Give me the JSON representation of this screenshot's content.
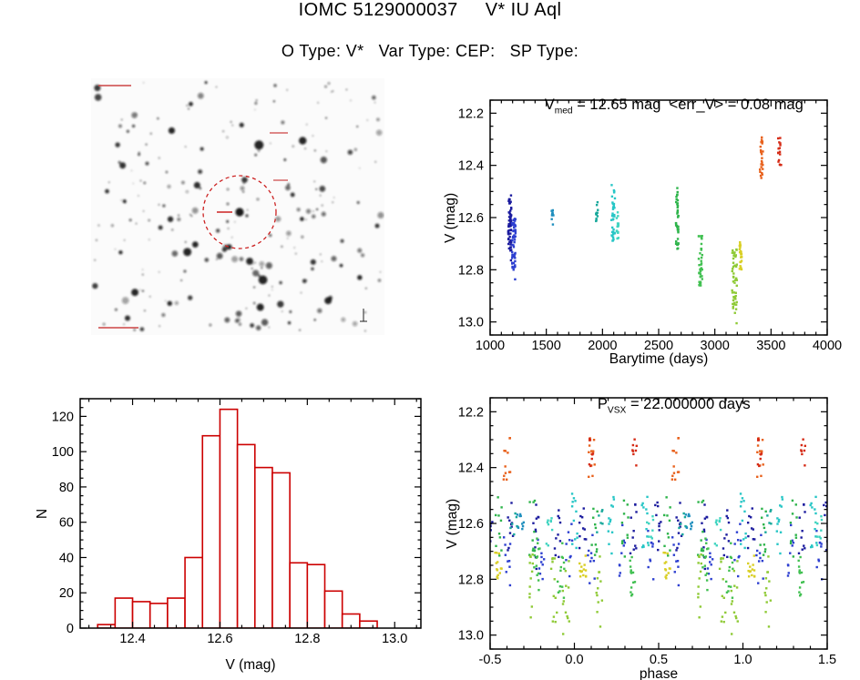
{
  "page": {
    "title_parts": [
      "IOMC 5129000037",
      "V* IU Aql"
    ],
    "subtitle_parts": [
      "O Type: V*",
      "Var Type: CEP:",
      "SP Type:"
    ]
  },
  "colors": {
    "axis": "#000000",
    "histogram_red": "#cc0000",
    "annotation_red": "#cc2222"
  },
  "chart_data": [
    {
      "id": "finding_chart",
      "type": "image",
      "description": "Inverted grayscale star-field finding chart; red dashed circle marks the target star",
      "circle_color": "#cc2222",
      "n_stars": 235
    },
    {
      "id": "lightcurve",
      "type": "scatter",
      "title_parts": [
        "V",
        "med",
        " = 12.65 mag  <err_V> = 0.08 mag"
      ],
      "v_med_mag": 12.65,
      "err_v_mag": 0.08,
      "xlabel": "Barytime (days)",
      "ylabel": "V (mag)",
      "xlim": [
        1000,
        4000
      ],
      "ylim": [
        12.15,
        13.05
      ],
      "xticks": [
        1000,
        1500,
        2000,
        2500,
        3000,
        3500,
        4000
      ],
      "xtick_labels": [
        "1000",
        "1500",
        "2000",
        "2500",
        "3000",
        "3500",
        "4000"
      ],
      "yticks": [
        12.2,
        12.4,
        12.6,
        12.8,
        13.0
      ],
      "ytick_labels": [
        "12.2",
        "12.4",
        "12.6",
        "12.8",
        "13.0"
      ],
      "x_minor": 100,
      "y_minor": 0.05,
      "y_axis_inverted": true,
      "clusters": [
        {
          "t": 1175,
          "dt": 14,
          "v": 12.63,
          "dv": 0.1,
          "n": 60,
          "color": "#1b1b9e",
          "phases": [
            0.05,
            0.35,
            0.5,
            0.62,
            0.77,
            0.9
          ]
        },
        {
          "t": 1212,
          "dt": 16,
          "v": 12.7,
          "dv": 0.1,
          "n": 52,
          "color": "#2d3fd0",
          "phases": [
            0.1,
            0.28,
            0.45,
            0.6,
            0.8,
            0.97
          ]
        },
        {
          "t": 1555,
          "dt": 8,
          "v": 12.6,
          "dv": 0.035,
          "n": 10,
          "color": "#1f8fbe",
          "phases": [
            0.68
          ]
        },
        {
          "t": 1950,
          "dt": 9,
          "v": 12.59,
          "dv": 0.05,
          "n": 12,
          "color": "#18a89b",
          "phases": [
            0.64,
            0.15
          ]
        },
        {
          "t": 2095,
          "dt": 16,
          "v": 12.59,
          "dv": 0.1,
          "n": 36,
          "color": "#27c6c6",
          "phases": [
            0.0,
            0.42,
            0.22
          ]
        },
        {
          "t": 2135,
          "dt": 9,
          "v": 12.63,
          "dv": 0.06,
          "n": 18,
          "color": "#3fd4c0",
          "phases": [
            0.85,
            0.45
          ]
        },
        {
          "t": 2665,
          "dt": 11,
          "v": 12.61,
          "dv": 0.11,
          "n": 40,
          "color": "#2eb44b",
          "phases": [
            0.12,
            0.3,
            0.55,
            0.75
          ]
        },
        {
          "t": 2872,
          "dt": 16,
          "v": 12.77,
          "dv": 0.1,
          "n": 38,
          "color": "#41c051",
          "phases": [
            0.78,
            0.92,
            0.35
          ]
        },
        {
          "t": 3175,
          "dt": 22,
          "v": 12.84,
          "dv": 0.13,
          "n": 48,
          "color": "#8fca36",
          "phases": [
            0.88,
            0.95,
            0.75,
            0.15
          ]
        },
        {
          "t": 3230,
          "dt": 10,
          "v": 12.75,
          "dv": 0.05,
          "n": 26,
          "color": "#d9cf25",
          "phases": [
            0.55,
            0.05
          ]
        },
        {
          "t": 3415,
          "dt": 14,
          "v": 12.37,
          "dv": 0.08,
          "n": 24,
          "color": "#e8611c",
          "phases": [
            0.1,
            0.6
          ]
        },
        {
          "t": 3578,
          "dt": 15,
          "v": 12.35,
          "dv": 0.055,
          "n": 16,
          "color": "#d52a15",
          "phases": [
            0.35,
            0.1
          ]
        }
      ]
    },
    {
      "id": "histogram",
      "type": "bar",
      "xlabel": "V (mag)",
      "ylabel": "N",
      "xlim": [
        12.28,
        13.06
      ],
      "ylim": [
        0,
        130
      ],
      "xticks": [
        12.4,
        12.6,
        12.8,
        13.0
      ],
      "xtick_labels": [
        "12.4",
        "12.6",
        "12.8",
        "13.0"
      ],
      "yticks": [
        0,
        20,
        40,
        60,
        80,
        100,
        120
      ],
      "ytick_labels": [
        "0",
        "20",
        "40",
        "60",
        "80",
        "100",
        "120"
      ],
      "x_minor": 0.05,
      "y_minor": 5,
      "bar_color": "#cc0000",
      "bins": {
        "start": 12.32,
        "width": 0.04,
        "counts": [
          2,
          17,
          15,
          14,
          17,
          40,
          109,
          124,
          104,
          91,
          88,
          37,
          36,
          21,
          8,
          4
        ]
      }
    },
    {
      "id": "phase_plot",
      "type": "scatter",
      "title_parts": [
        "P",
        "VSX",
        " = 22.000000 days"
      ],
      "period_days": 22.0,
      "folded_from": "lightcurve",
      "xlabel": "phase",
      "ylabel": "V (mag)",
      "xlim": [
        -0.5,
        1.5
      ],
      "ylim": [
        12.15,
        13.05
      ],
      "xticks": [
        -0.5,
        0,
        0.5,
        1,
        1.5
      ],
      "xtick_labels": [
        "-0.5",
        "0.0",
        "0.5",
        "1.0",
        "1.5"
      ],
      "yticks": [
        12.2,
        12.4,
        12.6,
        12.8,
        13.0
      ],
      "ytick_labels": [
        "12.2",
        "12.4",
        "12.6",
        "12.8",
        "13.0"
      ],
      "x_minor": 0.1,
      "y_minor": 0.05,
      "y_axis_inverted": true
    }
  ]
}
